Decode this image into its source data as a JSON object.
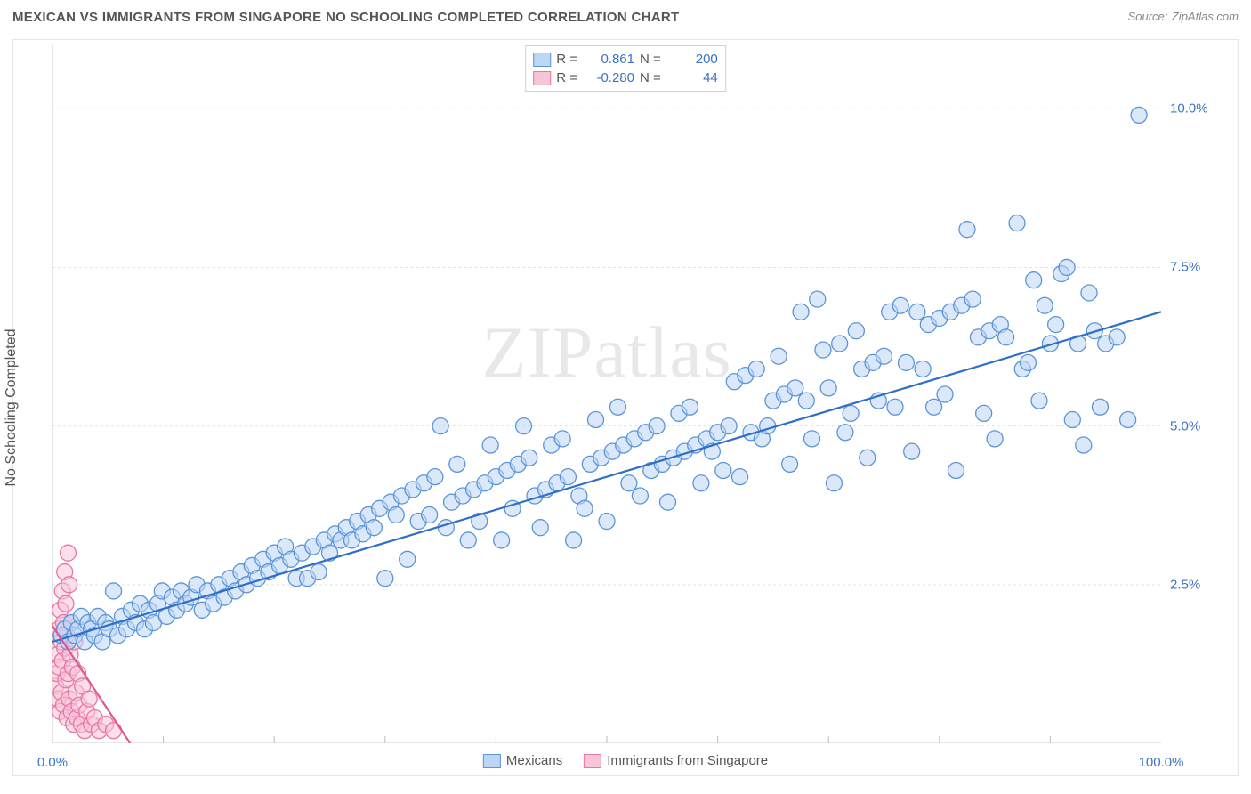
{
  "title": "MEXICAN VS IMMIGRANTS FROM SINGAPORE NO SCHOOLING COMPLETED CORRELATION CHART",
  "source_label": "Source:",
  "source_name": "ZipAtlas.com",
  "watermark": "ZIPatlas",
  "ylabel": "No Schooling Completed",
  "chart": {
    "type": "scatter",
    "background_color": "#ffffff",
    "grid_color": "#e3e3e3",
    "grid_dash": "3,3",
    "xlim": [
      0,
      100
    ],
    "ylim": [
      0,
      11
    ],
    "ytick_values": [
      2.5,
      5.0,
      7.5,
      10.0
    ],
    "ytick_labels": [
      "2.5%",
      "5.0%",
      "7.5%",
      "10.0%"
    ],
    "xtick_minor": [
      10,
      20,
      30,
      40,
      50,
      60,
      70,
      80,
      90
    ],
    "xtick_labels": [
      {
        "v": 0,
        "label": "0.0%"
      },
      {
        "v": 100,
        "label": "100.0%"
      }
    ],
    "point_radius": 9,
    "point_stroke_width": 1.3,
    "point_opacity": 0.55,
    "trend_line_width": 2.2,
    "series": {
      "mexicans": {
        "label": "Mexicans",
        "fill": "#bcd6f5",
        "stroke": "#5c95d6",
        "line_color": "#2f6fc9",
        "R": "0.861",
        "N": "200",
        "trend_line": {
          "x1": 0,
          "y1": 1.6,
          "x2": 100,
          "y2": 6.8
        },
        "points": [
          [
            0.8,
            1.7
          ],
          [
            1.1,
            1.8
          ],
          [
            1.4,
            1.6
          ],
          [
            1.7,
            1.9
          ],
          [
            2.0,
            1.7
          ],
          [
            2.3,
            1.8
          ],
          [
            2.6,
            2.0
          ],
          [
            2.9,
            1.6
          ],
          [
            3.2,
            1.9
          ],
          [
            3.5,
            1.8
          ],
          [
            3.8,
            1.7
          ],
          [
            4.1,
            2.0
          ],
          [
            4.5,
            1.6
          ],
          [
            4.8,
            1.9
          ],
          [
            5.1,
            1.8
          ],
          [
            5.5,
            2.4
          ],
          [
            5.9,
            1.7
          ],
          [
            6.3,
            2.0
          ],
          [
            6.7,
            1.8
          ],
          [
            7.1,
            2.1
          ],
          [
            7.5,
            1.9
          ],
          [
            7.9,
            2.2
          ],
          [
            8.3,
            1.8
          ],
          [
            8.7,
            2.1
          ],
          [
            9.1,
            1.9
          ],
          [
            9.5,
            2.2
          ],
          [
            9.9,
            2.4
          ],
          [
            10.3,
            2.0
          ],
          [
            10.8,
            2.3
          ],
          [
            11.2,
            2.1
          ],
          [
            11.6,
            2.4
          ],
          [
            12.0,
            2.2
          ],
          [
            12.5,
            2.3
          ],
          [
            13.0,
            2.5
          ],
          [
            13.5,
            2.1
          ],
          [
            14.0,
            2.4
          ],
          [
            14.5,
            2.2
          ],
          [
            15.0,
            2.5
          ],
          [
            15.5,
            2.3
          ],
          [
            16.0,
            2.6
          ],
          [
            16.5,
            2.4
          ],
          [
            17.0,
            2.7
          ],
          [
            17.5,
            2.5
          ],
          [
            18.0,
            2.8
          ],
          [
            18.5,
            2.6
          ],
          [
            19.0,
            2.9
          ],
          [
            19.5,
            2.7
          ],
          [
            20.0,
            3.0
          ],
          [
            20.5,
            2.8
          ],
          [
            21.0,
            3.1
          ],
          [
            21.5,
            2.9
          ],
          [
            22.0,
            2.6
          ],
          [
            22.5,
            3.0
          ],
          [
            23.0,
            2.6
          ],
          [
            23.5,
            3.1
          ],
          [
            24.0,
            2.7
          ],
          [
            24.5,
            3.2
          ],
          [
            25.0,
            3.0
          ],
          [
            25.5,
            3.3
          ],
          [
            26.0,
            3.2
          ],
          [
            26.5,
            3.4
          ],
          [
            27.0,
            3.2
          ],
          [
            27.5,
            3.5
          ],
          [
            28.0,
            3.3
          ],
          [
            28.5,
            3.6
          ],
          [
            29.0,
            3.4
          ],
          [
            29.5,
            3.7
          ],
          [
            30.0,
            2.6
          ],
          [
            30.5,
            3.8
          ],
          [
            31.0,
            3.6
          ],
          [
            31.5,
            3.9
          ],
          [
            32.0,
            2.9
          ],
          [
            32.5,
            4.0
          ],
          [
            33.0,
            3.5
          ],
          [
            33.5,
            4.1
          ],
          [
            34.0,
            3.6
          ],
          [
            34.5,
            4.2
          ],
          [
            35.0,
            5.0
          ],
          [
            35.5,
            3.4
          ],
          [
            36.0,
            3.8
          ],
          [
            36.5,
            4.4
          ],
          [
            37.0,
            3.9
          ],
          [
            37.5,
            3.2
          ],
          [
            38.0,
            4.0
          ],
          [
            38.5,
            3.5
          ],
          [
            39.0,
            4.1
          ],
          [
            39.5,
            4.7
          ],
          [
            40.0,
            4.2
          ],
          [
            40.5,
            3.2
          ],
          [
            41.0,
            4.3
          ],
          [
            41.5,
            3.7
          ],
          [
            42.0,
            4.4
          ],
          [
            42.5,
            5.0
          ],
          [
            43.0,
            4.5
          ],
          [
            43.5,
            3.9
          ],
          [
            44.0,
            3.4
          ],
          [
            44.5,
            4.0
          ],
          [
            45.0,
            4.7
          ],
          [
            45.5,
            4.1
          ],
          [
            46.0,
            4.8
          ],
          [
            46.5,
            4.2
          ],
          [
            47.0,
            3.2
          ],
          [
            47.5,
            3.9
          ],
          [
            48.0,
            3.7
          ],
          [
            48.5,
            4.4
          ],
          [
            49.0,
            5.1
          ],
          [
            49.5,
            4.5
          ],
          [
            50.0,
            3.5
          ],
          [
            50.5,
            4.6
          ],
          [
            51.0,
            5.3
          ],
          [
            51.5,
            4.7
          ],
          [
            52.0,
            4.1
          ],
          [
            52.5,
            4.8
          ],
          [
            53.0,
            3.9
          ],
          [
            53.5,
            4.9
          ],
          [
            54.0,
            4.3
          ],
          [
            54.5,
            5.0
          ],
          [
            55.0,
            4.4
          ],
          [
            55.5,
            3.8
          ],
          [
            56.0,
            4.5
          ],
          [
            56.5,
            5.2
          ],
          [
            57.0,
            4.6
          ],
          [
            57.5,
            5.3
          ],
          [
            58.0,
            4.7
          ],
          [
            58.5,
            4.1
          ],
          [
            59.0,
            4.8
          ],
          [
            59.5,
            4.6
          ],
          [
            60.0,
            4.9
          ],
          [
            60.5,
            4.3
          ],
          [
            61.0,
            5.0
          ],
          [
            61.5,
            5.7
          ],
          [
            62.0,
            4.2
          ],
          [
            62.5,
            5.8
          ],
          [
            63.0,
            4.9
          ],
          [
            63.5,
            5.9
          ],
          [
            64.0,
            4.8
          ],
          [
            64.5,
            5.0
          ],
          [
            65.0,
            5.4
          ],
          [
            65.5,
            6.1
          ],
          [
            66.0,
            5.5
          ],
          [
            66.5,
            4.4
          ],
          [
            67.0,
            5.6
          ],
          [
            67.5,
            6.8
          ],
          [
            68.0,
            5.4
          ],
          [
            68.5,
            4.8
          ],
          [
            69.0,
            7.0
          ],
          [
            69.5,
            6.2
          ],
          [
            70.0,
            5.6
          ],
          [
            70.5,
            4.1
          ],
          [
            71.0,
            6.3
          ],
          [
            71.5,
            4.9
          ],
          [
            72.0,
            5.2
          ],
          [
            72.5,
            6.5
          ],
          [
            73.0,
            5.9
          ],
          [
            73.5,
            4.5
          ],
          [
            74.0,
            6.0
          ],
          [
            74.5,
            5.4
          ],
          [
            75.0,
            6.1
          ],
          [
            75.5,
            6.8
          ],
          [
            76.0,
            5.3
          ],
          [
            76.5,
            6.9
          ],
          [
            77.0,
            6.0
          ],
          [
            77.5,
            4.6
          ],
          [
            78.0,
            6.8
          ],
          [
            78.5,
            5.9
          ],
          [
            79.0,
            6.6
          ],
          [
            79.5,
            5.3
          ],
          [
            80.0,
            6.7
          ],
          [
            80.5,
            5.5
          ],
          [
            81.0,
            6.8
          ],
          [
            81.5,
            4.3
          ],
          [
            82.0,
            6.9
          ],
          [
            82.5,
            8.1
          ],
          [
            83.0,
            7.0
          ],
          [
            83.5,
            6.4
          ],
          [
            84.0,
            5.2
          ],
          [
            84.5,
            6.5
          ],
          [
            85.0,
            4.8
          ],
          [
            85.5,
            6.6
          ],
          [
            86.0,
            6.4
          ],
          [
            87.0,
            8.2
          ],
          [
            87.5,
            5.9
          ],
          [
            88.0,
            6.0
          ],
          [
            88.5,
            7.3
          ],
          [
            89.0,
            5.4
          ],
          [
            89.5,
            6.9
          ],
          [
            90.0,
            6.3
          ],
          [
            90.5,
            6.6
          ],
          [
            91.0,
            7.4
          ],
          [
            91.5,
            7.5
          ],
          [
            92.0,
            5.1
          ],
          [
            92.5,
            6.3
          ],
          [
            93.0,
            4.7
          ],
          [
            93.5,
            7.1
          ],
          [
            94.0,
            6.5
          ],
          [
            94.5,
            5.3
          ],
          [
            95.0,
            6.3
          ],
          [
            96.0,
            6.4
          ],
          [
            97.0,
            5.1
          ],
          [
            98.0,
            9.9
          ]
        ]
      },
      "singapore": {
        "label": "Immigrants from Singapore",
        "fill": "#f8c4d8",
        "stroke": "#e877a5",
        "line_color": "#e25590",
        "R": "-0.280",
        "N": "44",
        "trend_line": {
          "x1": 0,
          "y1": 1.85,
          "x2": 7,
          "y2": 0.0
        },
        "points": [
          [
            0.3,
            0.9
          ],
          [
            0.4,
            1.1
          ],
          [
            0.5,
            1.4
          ],
          [
            0.5,
            0.7
          ],
          [
            0.6,
            1.8
          ],
          [
            0.6,
            1.2
          ],
          [
            0.7,
            2.1
          ],
          [
            0.7,
            0.5
          ],
          [
            0.8,
            1.6
          ],
          [
            0.8,
            0.8
          ],
          [
            0.9,
            2.4
          ],
          [
            0.9,
            1.3
          ],
          [
            1.0,
            1.9
          ],
          [
            1.0,
            0.6
          ],
          [
            1.1,
            2.7
          ],
          [
            1.1,
            1.5
          ],
          [
            1.2,
            1.0
          ],
          [
            1.2,
            2.2
          ],
          [
            1.3,
            0.4
          ],
          [
            1.3,
            1.7
          ],
          [
            1.4,
            3.0
          ],
          [
            1.4,
            1.1
          ],
          [
            1.5,
            0.7
          ],
          [
            1.5,
            2.5
          ],
          [
            1.6,
            1.4
          ],
          [
            1.7,
            0.5
          ],
          [
            1.7,
            1.9
          ],
          [
            1.8,
            1.2
          ],
          [
            1.9,
            0.3
          ],
          [
            2.0,
            1.6
          ],
          [
            2.1,
            0.8
          ],
          [
            2.2,
            0.4
          ],
          [
            2.3,
            1.1
          ],
          [
            2.4,
            0.6
          ],
          [
            2.6,
            0.3
          ],
          [
            2.7,
            0.9
          ],
          [
            2.9,
            0.2
          ],
          [
            3.1,
            0.5
          ],
          [
            3.3,
            0.7
          ],
          [
            3.5,
            0.3
          ],
          [
            3.8,
            0.4
          ],
          [
            4.2,
            0.2
          ],
          [
            4.8,
            0.3
          ],
          [
            5.5,
            0.2
          ]
        ]
      }
    }
  },
  "top_legend": {
    "R_label": "R =",
    "N_label": "N ="
  }
}
